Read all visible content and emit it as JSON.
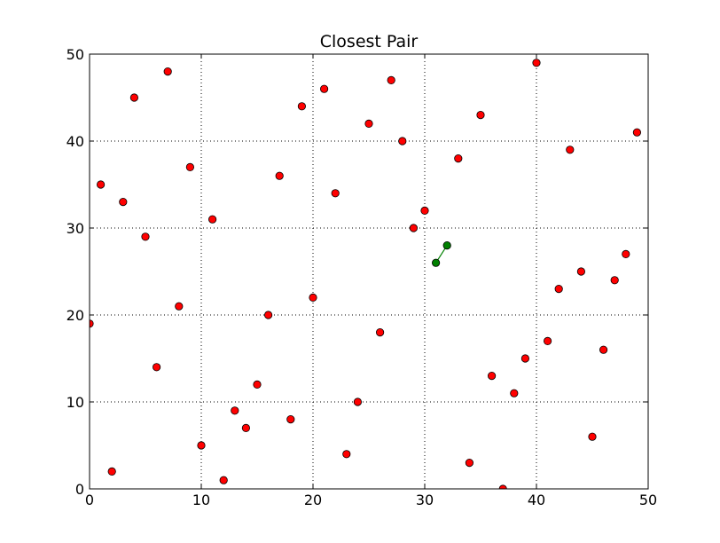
{
  "chart_data": {
    "type": "scatter",
    "title": "Closest Pair",
    "xlabel": "",
    "ylabel": "",
    "xlim": [
      0,
      50
    ],
    "ylim": [
      0,
      50
    ],
    "xticks": [
      0,
      10,
      20,
      30,
      40,
      50
    ],
    "yticks": [
      0,
      10,
      20,
      30,
      40,
      50
    ],
    "grid": true,
    "grid_style": "dotted",
    "colors": {
      "points": "#ff0000",
      "closest_pair": "#008000",
      "grid": "#000000"
    },
    "series": [
      {
        "points": [
          [
            0,
            19
          ],
          [
            1,
            35
          ],
          [
            2,
            2
          ],
          [
            3,
            33
          ],
          [
            4,
            45
          ],
          [
            5,
            29
          ],
          [
            6,
            14
          ],
          [
            7,
            48
          ],
          [
            8,
            21
          ],
          [
            9,
            37
          ],
          [
            10,
            5
          ],
          [
            11,
            31
          ],
          [
            12,
            1
          ],
          [
            13,
            9
          ],
          [
            14,
            7
          ],
          [
            15,
            12
          ],
          [
            16,
            20
          ],
          [
            17,
            36
          ],
          [
            18,
            8
          ],
          [
            19,
            44
          ],
          [
            20,
            22
          ],
          [
            21,
            46
          ],
          [
            22,
            34
          ],
          [
            23,
            4
          ],
          [
            24,
            10
          ],
          [
            25,
            42
          ],
          [
            26,
            18
          ],
          [
            27,
            47
          ],
          [
            28,
            40
          ],
          [
            29,
            30
          ],
          [
            30,
            32
          ],
          [
            33,
            38
          ],
          [
            34,
            3
          ],
          [
            35,
            43
          ],
          [
            36,
            13
          ],
          [
            37,
            0
          ],
          [
            38,
            11
          ],
          [
            39,
            15
          ],
          [
            40,
            49
          ],
          [
            41,
            17
          ],
          [
            42,
            23
          ],
          [
            43,
            39
          ],
          [
            44,
            25
          ],
          [
            45,
            6
          ],
          [
            46,
            16
          ],
          [
            47,
            24
          ],
          [
            48,
            27
          ],
          [
            49,
            41
          ]
        ]
      },
      {
        "points": [
          [
            31,
            26
          ],
          [
            32,
            28
          ]
        ],
        "connected": true
      }
    ]
  }
}
